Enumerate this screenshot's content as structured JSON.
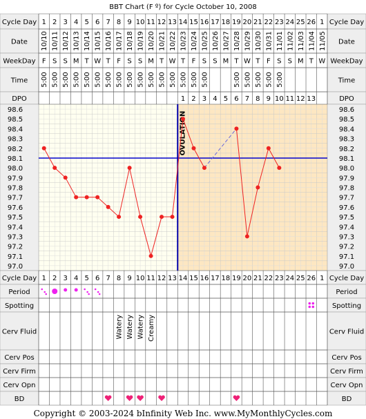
{
  "title": "BBT Chart (F º) for Cycle October 10, 2008",
  "labels": {
    "cycle_day": "Cycle Day",
    "date": "Date",
    "weekday": "WeekDay",
    "time": "Time",
    "dpo": "DPO",
    "period": "Period",
    "spotting": "Spotting",
    "cerv_fluid": "Cerv Fluid",
    "cerv_pos": "Cerv Pos",
    "cerv_firm": "Cerv Firm",
    "cerv_opn": "Cerv Opn",
    "bd": "BD"
  },
  "days": [
    1,
    2,
    3,
    4,
    5,
    6,
    7,
    8,
    9,
    10,
    11,
    12,
    13,
    14,
    15,
    16,
    17,
    18,
    19,
    20,
    21,
    22,
    23,
    24,
    25,
    26,
    1
  ],
  "dates": [
    "10/10",
    "10/11",
    "10/12",
    "10/13",
    "10/14",
    "10/15",
    "10/16",
    "10/17",
    "10/18",
    "10/19",
    "10/20",
    "10/21",
    "10/22",
    "10/23",
    "10/24",
    "10/25",
    "10/26",
    "10/27",
    "10/28",
    "10/29",
    "10/30",
    "10/31",
    "11/01",
    "11/02",
    "11/03",
    "11/04",
    "11/05"
  ],
  "weekdays": [
    "F",
    "S",
    "S",
    "M",
    "T",
    "W",
    "T",
    "F",
    "S",
    "S",
    "M",
    "T",
    "W",
    "T",
    "F",
    "S",
    "S",
    "M",
    "T",
    "W",
    "T",
    "F",
    "S",
    "S",
    "M",
    "T",
    "W"
  ],
  "times": [
    "5:00",
    "5:00",
    "5:00",
    "5:00",
    "5:00",
    "5:00",
    "5:00",
    "5:00",
    "5:00",
    "5:00",
    "5:00",
    "5:00",
    "5:00",
    "5:00",
    "5:00",
    "5:00",
    "",
    "",
    "5:00",
    "5:00",
    "5:00",
    "5:00",
    "5:00",
    "",
    "",
    "",
    ""
  ],
  "dpo": [
    "",
    "",
    "",
    "",
    "",
    "",
    "",
    "",
    "",
    "",
    "",
    "",
    "",
    "1",
    "2",
    "3",
    "4",
    "5",
    "6",
    "7",
    "8",
    "9",
    "10",
    "11",
    "12",
    "13",
    ""
  ],
  "cerv_fluid": [
    "",
    "",
    "",
    "",
    "",
    "",
    "",
    "Watery",
    "Watery",
    "Watery",
    "Creamy",
    "",
    "",
    "",
    "",
    "",
    "",
    "",
    "",
    "",
    "",
    "",
    "",
    "",
    "",
    "",
    ""
  ],
  "period": [
    "light",
    "heavy",
    "medium",
    "medium",
    "light",
    "light",
    "",
    "",
    "",
    "",
    "",
    "",
    "",
    "",
    "",
    "",
    "",
    "",
    "",
    "",
    "",
    "",
    "",
    "",
    "",
    "",
    ""
  ],
  "spotting": [
    "",
    "",
    "",
    "",
    "",
    "",
    "",
    "",
    "",
    "",
    "",
    "",
    "",
    "",
    "",
    "",
    "",
    "",
    "",
    "",
    "",
    "",
    "",
    "",
    "",
    "spot",
    ""
  ],
  "bd": [
    false,
    false,
    false,
    false,
    false,
    false,
    true,
    false,
    true,
    true,
    false,
    true,
    false,
    false,
    false,
    false,
    false,
    false,
    true,
    false,
    false,
    false,
    false,
    false,
    false,
    false,
    false
  ],
  "ovulation_label": "OVULATION",
  "footer": "Copyright © 2003-2024 bInfinity Web Inc.    www.MyMonthlyCycles.com",
  "colors": {
    "line": "#ee2222",
    "coverline": "#0000cc",
    "ovulation": "#0000aa",
    "luteal_shade": "#fde7c2",
    "follicular_bg": "#fffff0",
    "label_bg": "#eeeeee",
    "bd_heart": "#ee2277",
    "period_dot": "#ee22ee"
  },
  "chart_data": {
    "type": "line",
    "title": "BBT Chart (F º) for Cycle October 10, 2008",
    "x": [
      1,
      2,
      3,
      4,
      5,
      6,
      7,
      8,
      9,
      10,
      11,
      12,
      13,
      14,
      15,
      16,
      17,
      18,
      19,
      20,
      21,
      22,
      23
    ],
    "y_ticks": [
      "98.6",
      "98.5",
      "98.4",
      "98.3",
      "98.2",
      "98.1",
      "98.0",
      "97.9",
      "97.8",
      "97.7",
      "97.6",
      "97.5",
      "97.4",
      "97.3",
      "97.2",
      "97.1",
      "97.0"
    ],
    "ylim": [
      97.0,
      98.6
    ],
    "series": [
      {
        "values": [
          98.2,
          98.0,
          97.9,
          97.7,
          97.7,
          97.7,
          97.6,
          97.5,
          98.0,
          97.5,
          97.1,
          97.5,
          97.5,
          98.5,
          98.2,
          98.0,
          null,
          null,
          98.4,
          97.3,
          97.8,
          98.2,
          98.0
        ]
      }
    ],
    "coverline": 98.1,
    "ovulation_day": 13.5,
    "luteal_start_day": 14
  }
}
